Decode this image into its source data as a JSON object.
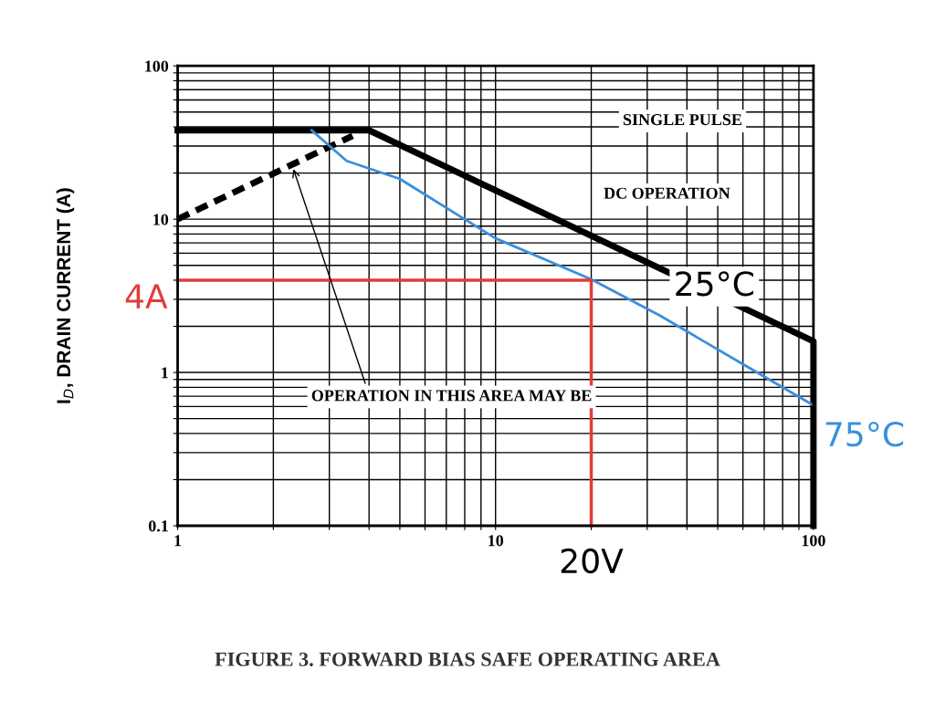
{
  "chart_data": {
    "type": "line",
    "title": "FIGURE 3. FORWARD BIAS SAFE OPERATING AREA",
    "ylabel": "I$_{D}$, DRAIN CURRENT (A)",
    "log": "xy",
    "grid": true,
    "legend": false,
    "marker": "none",
    "xlim": [
      1,
      100
    ],
    "ylim": [
      0.1,
      100
    ],
    "xticks": [
      1,
      {
        "value": 2,
        "label": null
      },
      {
        "value": 3,
        "label": null
      },
      {
        "value": 4,
        "label": null
      },
      {
        "value": 5,
        "label": null
      },
      {
        "value": 6,
        "label": null
      },
      {
        "value": 7,
        "label": null
      },
      {
        "value": 8,
        "label": null
      },
      {
        "value": 9,
        "label": null
      },
      10,
      {
        "value": 20,
        "label": null
      },
      {
        "value": 30,
        "label": null
      },
      {
        "value": 40,
        "label": null
      },
      {
        "value": 50,
        "label": null
      },
      {
        "value": 60,
        "label": null
      },
      {
        "value": 70,
        "label": null
      },
      {
        "value": 80,
        "label": null
      },
      {
        "value": 90,
        "label": null
      },
      100
    ],
    "yticks": [
      0.1,
      {
        "value": 0.2,
        "label": null
      },
      {
        "value": 0.3,
        "label": null
      },
      {
        "value": 0.4,
        "label": null
      },
      {
        "value": 0.5,
        "label": null
      },
      {
        "value": 0.6,
        "label": null
      },
      {
        "value": 0.7,
        "label": null
      },
      {
        "value": 0.8,
        "label": null
      },
      {
        "value": 0.9,
        "label": null
      },
      1,
      {
        "value": 2,
        "label": null
      },
      {
        "value": 3,
        "label": null
      },
      {
        "value": 4,
        "label": null
      },
      {
        "value": 5,
        "label": null
      },
      {
        "value": 6,
        "label": null
      },
      {
        "value": 7,
        "label": null
      },
      {
        "value": 8,
        "label": null
      },
      {
        "value": 9,
        "label": null
      },
      10,
      {
        "value": 20,
        "label": null
      },
      {
        "value": 30,
        "label": null
      },
      {
        "value": 40,
        "label": null
      },
      {
        "value": 50,
        "label": null
      },
      {
        "value": 60,
        "label": null
      },
      {
        "value": 70,
        "label": null
      },
      {
        "value": 80,
        "label": null
      },
      {
        "value": 90,
        "label": null
      },
      100
    ],
    "series": [
      {
        "color": "#000000",
        "x": [
          1,
          4,
          100,
          100
        ],
        "values": [
          38,
          38,
          1.6,
          0.1
        ],
        "line_style": "solid"
      },
      {
        "color": "#000000",
        "x": [
          1,
          3.55
        ],
        "values": [
          10,
          35
        ],
        "line_style": "dashed"
      },
      {
        "color": "#3a8fdc",
        "x": [
          2.64,
          3.4,
          5,
          10,
          20,
          33,
          58,
          100
        ],
        "values": [
          38,
          24,
          18.3,
          7.5,
          4.05,
          2.34,
          1.18,
          0.61
        ],
        "line_style": "solid"
      },
      {
        "color": "#e03c3c",
        "x": [
          1,
          20,
          20
        ],
        "values": [
          4,
          4,
          0.1
        ],
        "line_style": "solid"
      }
    ],
    "annotations": [
      "SINGLE PULSE",
      "DC OPERATION",
      {
        "text": "OPERATION IN THIS AREA MAY BE",
        "x": 2.3,
        "y": 22
      },
      "25°C",
      {
        "text": "75°C",
        "x": 100,
        "y": 0.61
      },
      {
        "text": "4A",
        "x": 1,
        "y": 4
      },
      {
        "text": "20V",
        "x": 20,
        "y": 0.1
      }
    ]
  }
}
